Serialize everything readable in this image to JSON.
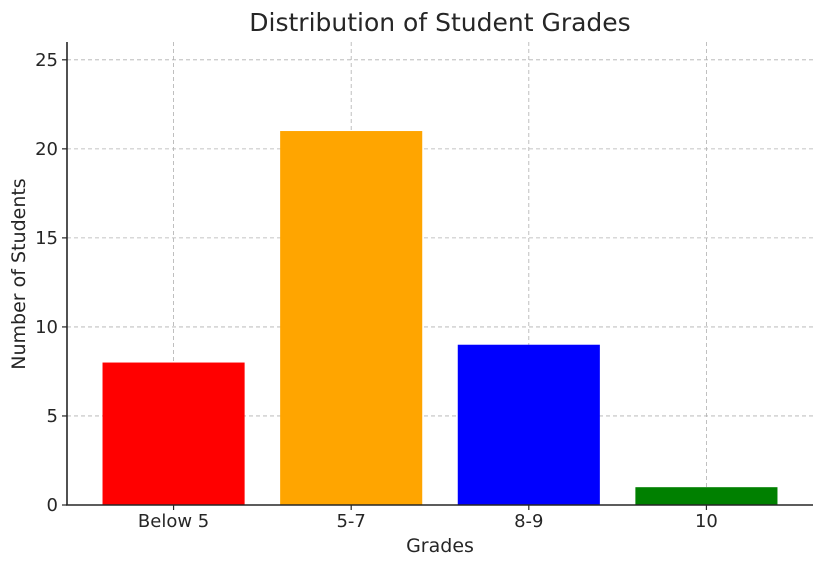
{
  "chart_data": {
    "type": "bar",
    "title": "Distribution of Student Grades",
    "xlabel": "Grades",
    "ylabel": "Number of Students",
    "categories": [
      "Below 5",
      "5-7",
      "8-9",
      "10"
    ],
    "values": [
      8,
      21,
      9,
      1
    ],
    "colors": [
      "#ff0000",
      "#ffa500",
      "#0000ff",
      "#008000"
    ],
    "ylim": [
      0,
      26
    ],
    "yticks": [
      0,
      5,
      10,
      15,
      20,
      25
    ],
    "grid": true
  }
}
